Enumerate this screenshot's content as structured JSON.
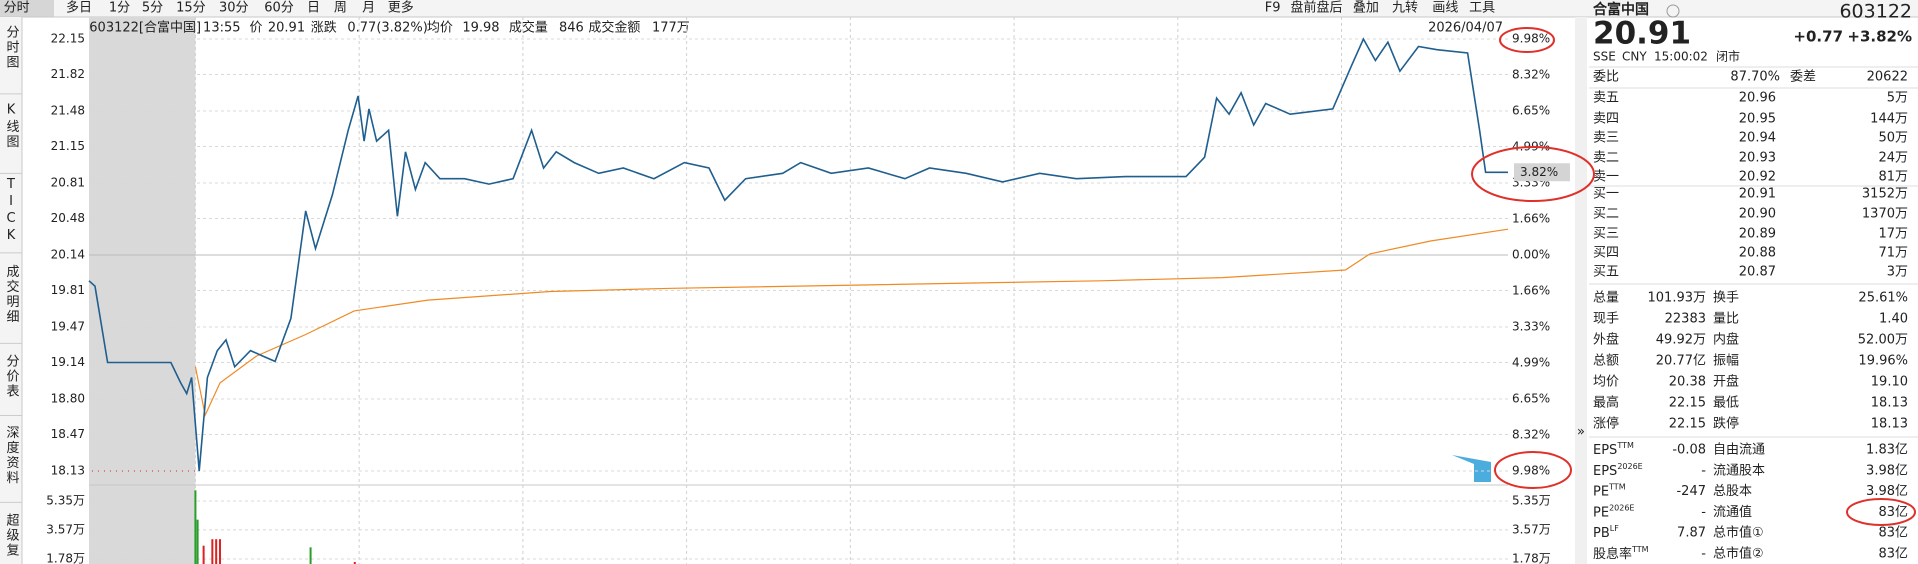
{
  "toolbar": {
    "tabs": [
      "分时",
      "多日",
      "1分",
      "5分",
      "15分",
      "30分",
      "60分",
      "日",
      "周",
      "月",
      "更多"
    ],
    "tools": [
      "F9",
      "盘前盘后",
      "叠加",
      "九转",
      "画线",
      "工具"
    ]
  },
  "side_tabs": [
    "分时图",
    "K线图",
    "TICK",
    "成交明细",
    "分价表",
    "深度资料",
    "超级复"
  ],
  "info_bar": {
    "code": "603122[合富中国]",
    "time": "13:55",
    "price_label": "价",
    "price": "20.91",
    "change_label": "涨跌",
    "change": "0.77(3.82%)",
    "avg_label": "均价",
    "avg": "19.98",
    "volume_label": "成交量",
    "volume": "846",
    "amount_label": "成交金额",
    "amount": "177万",
    "date": "2026/04/07"
  },
  "chart_data": [
    {
      "type": "line",
      "xlim": [
        0,
        260
      ],
      "ylim": [
        18.13,
        22.15
      ],
      "y2lim": [
        -9.98,
        9.98
      ],
      "grid": true,
      "xgrid": [
        19.5,
        49.5,
        79.5,
        109.5,
        139.5,
        169.5,
        199.5,
        229.5
      ],
      "yticks": [
        22.15,
        21.82,
        21.48,
        21.15,
        20.81,
        20.48,
        20.14,
        19.81,
        19.47,
        19.14,
        {
          "value": 18.8,
          "label": "18.80"
        },
        18.47,
        18.13
      ],
      "y2ticks": [
        {
          "value": 9.98,
          "label": "9.98%"
        },
        {
          "value": 8.32,
          "label": "8.32%"
        },
        {
          "value": 6.65,
          "label": "6.65%"
        },
        {
          "value": 4.99,
          "label": "4.99%"
        },
        {
          "value": 3.33,
          "label": "3.33%"
        },
        {
          "value": 1.66,
          "label": "1.66%"
        },
        {
          "value": 0,
          "label": "0.00%"
        },
        {
          "value": -1.66,
          "label": "1.66%"
        },
        {
          "value": -3.33,
          "label": "3.33%"
        },
        {
          "value": -4.99,
          "label": "4.99%"
        },
        {
          "value": -6.65,
          "label": "6.65%"
        },
        {
          "value": -8.32,
          "label": "8.32%"
        },
        {
          "value": -9.98,
          "label": "9.98%"
        }
      ],
      "last_label": "3.82%",
      "series": [
        {
          "color": "#1f5f8f",
          "x": [
            0,
            1.1,
            3.4,
            15.0,
            16.8,
            17.9,
            18.8,
            20.2,
            21.7,
            23.5,
            25.1,
            26.7,
            29.6,
            31.8,
            34.1,
            37.0,
            39.7,
            41.5,
            44.6,
            47.5,
            49.3,
            50.4,
            51.3,
            52.7,
            54.9,
            56.5,
            58.0,
            59.8,
            61.6,
            64.3,
            68.8,
            73.3,
            77.7,
            81.1,
            83.3,
            85.6,
            88.9,
            93.4,
            97.9,
            103.5,
            109.1,
            113.6,
            116.5,
            120.3,
            127.1,
            130.4,
            136.0,
            142.8,
            149.5,
            154.0,
            160.7,
            167.4,
            174.2,
            180.9,
            189.9,
            201.0,
            204.4,
            206.6,
            208.9,
            211.1,
            213.4,
            215.6,
            220.1,
            227.9,
            231.3,
            233.5,
            235.7,
            238.0,
            240.2,
            243.6,
            247.0,
            252.6,
            254.8,
            255.9,
            260
          ],
          "values": [
            19.9,
            19.85,
            19.14,
            19.14,
            18.95,
            18.85,
            19.0,
            18.13,
            19.0,
            19.25,
            19.35,
            19.1,
            19.25,
            19.2,
            19.15,
            19.55,
            20.55,
            20.2,
            20.7,
            21.3,
            21.62,
            21.2,
            21.5,
            21.2,
            21.3,
            20.5,
            21.1,
            20.75,
            21.0,
            20.85,
            20.85,
            20.8,
            20.85,
            21.3,
            20.95,
            21.1,
            21.0,
            20.9,
            20.95,
            20.85,
            21.0,
            20.95,
            20.65,
            20.85,
            20.9,
            21.0,
            20.9,
            20.95,
            20.85,
            20.95,
            20.9,
            20.82,
            20.9,
            20.85,
            20.87,
            20.87,
            21.05,
            21.6,
            21.45,
            21.65,
            21.35,
            21.55,
            21.45,
            21.5,
            21.9,
            22.15,
            21.95,
            22.12,
            21.85,
            22.08,
            22.05,
            22.02,
            21.3,
            20.91,
            20.91
          ]
        },
        {
          "color": "#f08a24",
          "x": [
            19.5,
            21.3,
            24.0,
            30.7,
            39.7,
            48.6,
            62.1,
            84.5,
            106.9,
            140.5,
            185.3,
            207.7,
            230.2,
            234.7,
            245.8,
            260
          ],
          "values": [
            19.1,
            18.65,
            18.95,
            19.2,
            19.4,
            19.62,
            19.72,
            19.8,
            19.83,
            19.86,
            19.9,
            19.93,
            20.0,
            20.15,
            20.27,
            20.38
          ]
        }
      ]
    },
    {
      "type": "bar",
      "xlim": [
        0,
        260
      ],
      "ylim": [
        0,
        62700
      ],
      "yticks": [
        {
          "value": 53500,
          "label": "5.35万"
        },
        {
          "value": 35700,
          "label": "3.57万"
        },
        {
          "value": 17800,
          "label": "1.78万"
        }
      ],
      "x": [
        19.5,
        19.9,
        21.0,
        22.6,
        23.3,
        24.0,
        40.6,
        48.7
      ],
      "values": [
        60000,
        42000,
        26000,
        30000,
        30000,
        30000,
        25000,
        16000
      ],
      "colors": [
        "#2a9d2a",
        "#2a9d2a",
        "#e02020",
        "#e02020",
        "#e02020",
        "#e02020",
        "#2a9d2a",
        "#e02020"
      ]
    }
  ],
  "quote": {
    "name": "合富中国",
    "code": "603122",
    "price": "20.91",
    "change": "+0.77",
    "change_pct": "+3.82%",
    "exchange": "SSE",
    "currency": "CNY",
    "time": "15:00:02",
    "status": "闭市",
    "ratio": {
      "label": "委比",
      "value": "87.70%",
      "diff_label": "委差",
      "diff": "20622"
    },
    "asks": [
      [
        "卖五",
        "20.96",
        "5万"
      ],
      [
        "卖四",
        "20.95",
        "144万"
      ],
      [
        "卖三",
        "20.94",
        "50万"
      ],
      [
        "卖二",
        "20.93",
        "24万"
      ],
      [
        "卖一",
        "20.92",
        "81万"
      ]
    ],
    "bids": [
      [
        "买一",
        "20.91",
        "3152万"
      ],
      [
        "买二",
        "20.90",
        "1370万"
      ],
      [
        "买三",
        "20.89",
        "17万"
      ],
      [
        "买四",
        "20.88",
        "71万"
      ],
      [
        "买五",
        "20.87",
        "3万"
      ]
    ],
    "stats": [
      [
        "总量",
        "101.93万",
        "换手",
        "25.61%"
      ],
      [
        "现手",
        "22383",
        "量比",
        "1.40"
      ],
      [
        "外盘",
        "49.92万",
        "内盘",
        "52.00万"
      ],
      [
        "总额",
        "20.77亿",
        "振幅",
        "19.96%"
      ],
      [
        "均价",
        "20.38",
        "开盘",
        "19.10"
      ],
      [
        "最高",
        "22.15",
        "最低",
        "18.13"
      ],
      [
        "涨停",
        "22.15",
        "跌停",
        "18.13"
      ]
    ],
    "fundamentals": [
      {
        "label": "EPS",
        "sup": "TTM",
        "value": "-0.08",
        "label2": "自由流通",
        "value2": "1.83亿"
      },
      {
        "label": "EPS",
        "sup": "2026E",
        "value": "-",
        "label2": "流通股本",
        "value2": "3.98亿"
      },
      {
        "label": "PE",
        "sup": "TTM",
        "value": "-247",
        "label2": "总股本",
        "value2": "3.98亿"
      },
      {
        "label": "PE",
        "sup": "2026E",
        "value": "-",
        "label2": "流通值",
        "value2": "83亿"
      },
      {
        "label": "PB",
        "sup": "LF",
        "value": "7.87",
        "label2": "总市值①",
        "value2": "83亿"
      },
      {
        "label": "股息率",
        "sup": "TTM",
        "value": "-",
        "label2": "总市值②",
        "value2": "83亿"
      }
    ]
  }
}
